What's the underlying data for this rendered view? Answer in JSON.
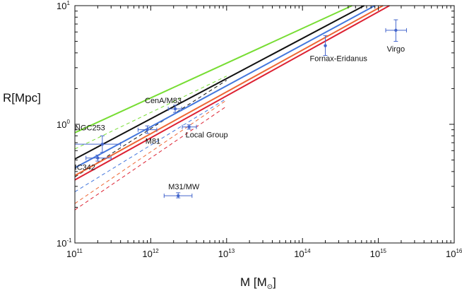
{
  "chart_data": {
    "type": "line",
    "xlabel": {
      "base": "M [M",
      "subscript": "⊙",
      "close": "]"
    },
    "ylabel": "R[Mpc]",
    "xscale": "log",
    "yscale": "log",
    "xlim": [
      100000000000.0,
      1e+16
    ],
    "ylim": [
      0.1,
      10
    ],
    "x_ticks": [
      {
        "base": "10",
        "exp": "11"
      },
      {
        "base": "10",
        "exp": "12"
      },
      {
        "base": "10",
        "exp": "13"
      },
      {
        "base": "10",
        "exp": "14"
      },
      {
        "base": "10",
        "exp": "15"
      },
      {
        "base": "10",
        "exp": "16"
      }
    ],
    "y_ticks": [
      {
        "value": 0.1,
        "base": "10",
        "exp": "-1"
      },
      {
        "value": 1,
        "label": "10",
        "exp": "0"
      },
      {
        "value": 10,
        "label": "10",
        "exp": "1"
      }
    ],
    "series": [
      {
        "name": "green",
        "color": "#77dd33",
        "solid": [
          [
            100000000000.0,
            0.85
          ],
          [
            450000000000000.0,
            10
          ]
        ],
        "dashed": [
          [
            100000000000.0,
            0.62
          ],
          [
            10000000000000.0,
            2.55
          ]
        ]
      },
      {
        "name": "black",
        "color": "#111111",
        "solid": [
          [
            100000000000.0,
            0.51
          ],
          [
            650000000000000.0,
            10
          ]
        ],
        "dashed": [
          [
            100000000000.0,
            0.36
          ],
          [
            10000000000000.0,
            2.35
          ]
        ]
      },
      {
        "name": "blue",
        "color": "#4477dd",
        "solid": [
          [
            100000000000.0,
            0.43
          ],
          [
            900000000000000.0,
            10
          ]
        ],
        "dashed": [
          [
            100000000000.0,
            0.27
          ],
          [
            10000000000000.0,
            1.65
          ]
        ]
      },
      {
        "name": "orange",
        "color": "#ee6633",
        "solid": [
          [
            100000000000.0,
            0.37
          ],
          [
            1150000000000000.0,
            10
          ]
        ],
        "dashed": [
          [
            100000000000.0,
            0.215
          ],
          [
            10000000000000.0,
            1.6
          ]
        ]
      },
      {
        "name": "red",
        "color": "#dd2233",
        "solid": [
          [
            100000000000.0,
            0.34
          ],
          [
            1400000000000000.0,
            10
          ]
        ],
        "dashed": [
          [
            100000000000.0,
            0.19
          ],
          [
            10000000000000.0,
            1.42
          ]
        ]
      }
    ],
    "points": [
      {
        "label": "Virgo",
        "x": 1700000000000000.0,
        "y": 6.2,
        "xerr": [
          1250000000000000.0,
          2350000000000000.0
        ],
        "yerr": [
          5.0,
          7.6
        ],
        "label_pos": "below"
      },
      {
        "label": "Fornax-Eridanus",
        "x": 200000000000000.0,
        "y": 4.6,
        "xerr": [
          200000000000000.0,
          200000000000000.0
        ],
        "yerr": [
          3.8,
          5.6
        ],
        "label_pos": "below-right"
      },
      {
        "label": "CenA/M83",
        "x": 2100000000000.0,
        "y": 1.35,
        "xerr": [
          1700000000000.0,
          2550000000000.0
        ],
        "yerr": [
          1.26,
          1.45
        ],
        "label_pos": "above"
      },
      {
        "label": "M81",
        "x": 900000000000.0,
        "y": 0.9,
        "xerr": [
          680000000000.0,
          1200000000000.0
        ],
        "yerr": [
          0.84,
          0.97
        ],
        "label_pos": "below"
      },
      {
        "label": "Local Group",
        "x": 3200000000000.0,
        "y": 0.95,
        "xerr": [
          2600000000000.0,
          4000000000000.0
        ],
        "yerr": [
          0.91,
          0.99
        ],
        "label_pos": "below-right"
      },
      {
        "label": "NGC253",
        "x": 230000000000.0,
        "y": 0.68,
        "xerr": [
          100000000000.0,
          400000000000.0
        ],
        "yerr": [
          0.58,
          0.8
        ],
        "label_pos": "above-left"
      },
      {
        "label": "IC342",
        "x": 200000000000.0,
        "y": 0.52,
        "xerr": [
          140000000000.0,
          300000000000.0
        ],
        "yerr": [
          0.49,
          0.55
        ],
        "label_pos": "below"
      },
      {
        "label": "M31/MW",
        "x": 2300000000000.0,
        "y": 0.25,
        "xerr": [
          1500000000000.0,
          3500000000000.0
        ],
        "yerr": [
          0.24,
          0.265
        ],
        "label_pos": "above"
      }
    ],
    "point_color": "#4466cc",
    "grid": false,
    "legend": "none"
  }
}
